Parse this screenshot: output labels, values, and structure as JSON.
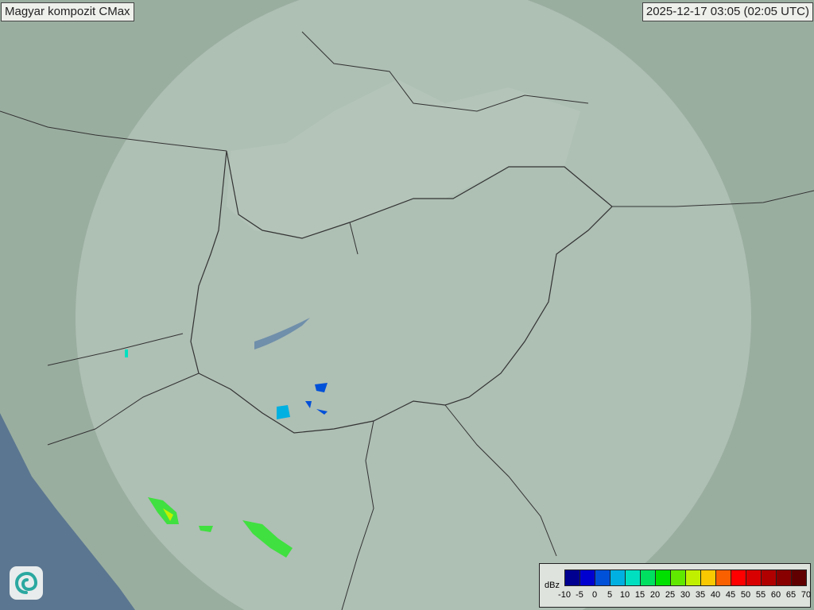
{
  "title": "Magyar kompozit  CMax",
  "timestamp": "2025-12-17 03:05 (02:05 UTC)",
  "legend": {
    "unit": "dBz",
    "ticks": [
      "-10",
      "-5",
      "0",
      "5",
      "10",
      "15",
      "20",
      "25",
      "30",
      "35",
      "40",
      "45",
      "50",
      "55",
      "60",
      "65",
      "70"
    ],
    "colors": [
      "#000090",
      "#0000d0",
      "#0050d8",
      "#00b0e0",
      "#00e0c0",
      "#00e060",
      "#00e000",
      "#60e800",
      "#c0f000",
      "#f8c800",
      "#f86000",
      "#ff0000",
      "#d80000",
      "#b00000",
      "#880000",
      "#600000"
    ]
  },
  "map": {
    "land_color": "#9aaea0",
    "sea_color": "#5b7690",
    "radar_coverage_color": "#c8d4cc",
    "border_color": "#333333"
  },
  "logo": {
    "icon": "swirl-logo-icon"
  }
}
